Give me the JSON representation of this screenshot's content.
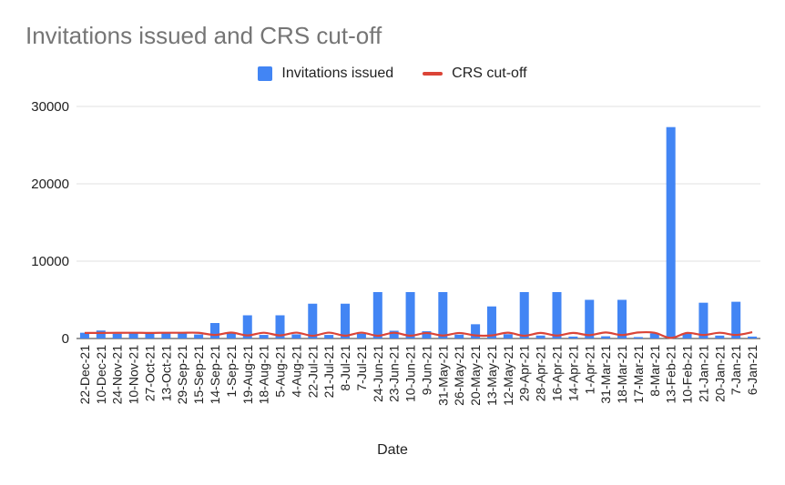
{
  "chart_data": {
    "type": "bar",
    "title": "Invitations issued and CRS cut-off",
    "xlabel": "Date",
    "ylabel": "",
    "ylim": [
      0,
      30000
    ],
    "yticks": [
      0,
      10000,
      20000,
      30000
    ],
    "legend_position": "top-center",
    "grid": true,
    "categories": [
      "22-Dec-21",
      "10-Dec-21",
      "24-Nov-21",
      "10-Nov-21",
      "27-Oct-21",
      "13-Oct-21",
      "29-Sep-21",
      "15-Sep-21",
      "14-Sep-21",
      "1-Sep-21",
      "19-Aug-21",
      "18-Aug-21",
      "5-Aug-21",
      "4-Aug-21",
      "22-Jul-21",
      "21-Jul-21",
      "8-Jul-21",
      "7-Jul-21",
      "24-Jun-21",
      "23-Jun-21",
      "10-Jun-21",
      "9-Jun-21",
      "31-May-21",
      "26-May-21",
      "20-May-21",
      "13-May-21",
      "12-May-21",
      "29-Apr-21",
      "28-Apr-21",
      "16-Apr-21",
      "14-Apr-21",
      "1-Apr-21",
      "31-Mar-21",
      "18-Mar-21",
      "17-Mar-21",
      "8-Mar-21",
      "13-Feb-21",
      "10-Feb-21",
      "21-Jan-21",
      "20-Jan-21",
      "7-Jan-21",
      "6-Jan-21"
    ],
    "series": [
      {
        "name": "Invitations issued",
        "type": "bar",
        "color": "#4285f4",
        "values": [
          746,
          1032,
          613,
          775,
          744,
          681,
          761,
          521,
          2000,
          761,
          3000,
          463,
          3000,
          537,
          4500,
          462,
          4500,
          627,
          6000,
          1002,
          6000,
          940,
          6000,
          500,
          1842,
          4147,
          557,
          6000,
          381,
          6000,
          250,
          5000,
          284,
          5000,
          183,
          671,
          27332,
          654,
          4626,
          374,
          4750,
          250
        ]
      },
      {
        "name": "CRS cut-off",
        "type": "line",
        "color": "#db4437",
        "values": [
          720,
          720,
          737,
          744,
          720,
          742,
          742,
          735,
          462,
          764,
          403,
          744,
          404,
          760,
          357,
          760,
          369,
          760,
          357,
          742,
          368,
          711,
          380,
          713,
          397,
          400,
          752,
          360,
          717,
          380,
          717,
          432,
          778,
          449,
          778,
          739,
          75,
          720,
          454,
          741,
          461,
          813
        ]
      }
    ]
  }
}
